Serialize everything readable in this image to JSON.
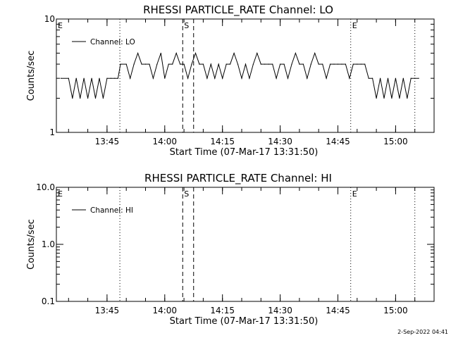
{
  "footer_timestamp": "2-Sep-2022 04:41",
  "chart_data": [
    {
      "type": "line",
      "title": "RHESSI PARTICLE_RATE Channel: LO",
      "xlabel": "Start Time (07-Mar-17 13:31:50)",
      "ylabel": "Counts/sec",
      "y_scale": "log",
      "ylim": [
        1,
        10
      ],
      "y_ticks": [
        {
          "value": 1,
          "label": "1"
        },
        {
          "value": 10,
          "label": "10"
        }
      ],
      "xlim": [
        "13:31:50",
        "15:10:00"
      ],
      "x_ticks": [
        "13:45",
        "14:00",
        "14:15",
        "14:30",
        "14:45",
        "15:00"
      ],
      "legend": "top-left",
      "series": [
        {
          "name": "Channel: LO",
          "color": "#000000",
          "x": [
            "13:33:00",
            "13:35:00",
            "13:36:00",
            "13:37:00",
            "13:38:00",
            "13:39:00",
            "13:40:00",
            "13:41:00",
            "13:42:00",
            "13:43:00",
            "13:44:00",
            "13:45:00",
            "13:46:00",
            "13:47:00",
            "13:47:50",
            "13:48:30",
            "13:50:00",
            "13:51:00",
            "13:52:00",
            "13:53:00",
            "13:54:00",
            "13:55:00",
            "13:56:00",
            "13:57:00",
            "13:58:00",
            "13:59:00",
            "14:00:00",
            "14:01:00",
            "14:02:00",
            "14:03:00",
            "14:04:00",
            "14:05:00",
            "14:06:00",
            "14:07:00",
            "14:08:00",
            "14:09:00",
            "14:10:00",
            "14:11:00",
            "14:12:00",
            "14:13:00",
            "14:14:00",
            "14:15:00",
            "14:16:00",
            "14:17:00",
            "14:18:00",
            "14:19:00",
            "14:20:00",
            "14:21:00",
            "14:22:00",
            "14:23:00",
            "14:24:00",
            "14:25:00",
            "14:26:00",
            "14:27:00",
            "14:28:00",
            "14:29:00",
            "14:30:00",
            "14:31:00",
            "14:32:00",
            "14:33:00",
            "14:34:00",
            "14:35:00",
            "14:36:00",
            "14:37:00",
            "14:38:00",
            "14:39:00",
            "14:40:00",
            "14:41:00",
            "14:42:00",
            "14:43:00",
            "14:44:00",
            "14:45:00",
            "14:46:00",
            "14:47:00",
            "14:48:00",
            "14:49:00",
            "14:50:00",
            "14:51:00",
            "14:52:00",
            "14:53:00",
            "14:54:00",
            "14:55:00",
            "14:56:00",
            "14:57:00",
            "14:58:00",
            "14:59:00",
            "15:00:00",
            "15:01:00",
            "15:02:00",
            "15:03:00",
            "15:04:00",
            "15:05:00",
            "15:06:00"
          ],
          "y": [
            3,
            3,
            2,
            3,
            2,
            3,
            2,
            3,
            2,
            3,
            2,
            3,
            3,
            3,
            3,
            4,
            4,
            3,
            4,
            5,
            4,
            4,
            4,
            3,
            4,
            5,
            3,
            4,
            4,
            5,
            4,
            4,
            3,
            4,
            5,
            4,
            4,
            3,
            4,
            3,
            4,
            3,
            4,
            4,
            5,
            4,
            3,
            4,
            3,
            4,
            5,
            4,
            4,
            4,
            4,
            3,
            4,
            4,
            3,
            4,
            5,
            4,
            4,
            3,
            4,
            5,
            4,
            4,
            3,
            4,
            4,
            4,
            4,
            4,
            3,
            4,
            4,
            4,
            4,
            3,
            3,
            2,
            3,
            2,
            3,
            2,
            3,
            2,
            3,
            2,
            3,
            3,
            3
          ]
        }
      ],
      "markers": [
        {
          "label": "E",
          "x": "13:31:50",
          "style": "dotted"
        },
        {
          "label": "",
          "x": "13:48:20",
          "style": "dotted"
        },
        {
          "label": "S",
          "x": "14:04:40",
          "style": "dashed"
        },
        {
          "label": "",
          "x": "14:07:30",
          "style": "dashed"
        },
        {
          "label": "E",
          "x": "14:48:20",
          "style": "dotted"
        },
        {
          "label": "",
          "x": "15:05:00",
          "style": "dotted"
        }
      ]
    },
    {
      "type": "line",
      "title": "RHESSI PARTICLE_RATE Channel: HI",
      "xlabel": "Start Time (07-Mar-17 13:31:50)",
      "ylabel": "Counts/sec",
      "y_scale": "log",
      "ylim": [
        0.1,
        10
      ],
      "y_ticks": [
        {
          "value": 0.1,
          "label": "0.1"
        },
        {
          "value": 1,
          "label": "1.0"
        },
        {
          "value": 10,
          "label": "10.0"
        }
      ],
      "xlim": [
        "13:31:50",
        "15:10:00"
      ],
      "x_ticks": [
        "13:45",
        "14:00",
        "14:15",
        "14:30",
        "14:45",
        "15:00"
      ],
      "legend": "top-left",
      "series": [
        {
          "name": "Channel: HI",
          "color": "#000000",
          "x": [],
          "y": []
        }
      ],
      "markers": [
        {
          "label": "E",
          "x": "13:31:50",
          "style": "dotted"
        },
        {
          "label": "",
          "x": "13:48:20",
          "style": "dotted"
        },
        {
          "label": "S",
          "x": "14:04:40",
          "style": "dashed"
        },
        {
          "label": "",
          "x": "14:07:30",
          "style": "dashed"
        },
        {
          "label": "E",
          "x": "14:48:20",
          "style": "dotted"
        },
        {
          "label": "",
          "x": "15:05:00",
          "style": "dotted"
        }
      ]
    }
  ]
}
